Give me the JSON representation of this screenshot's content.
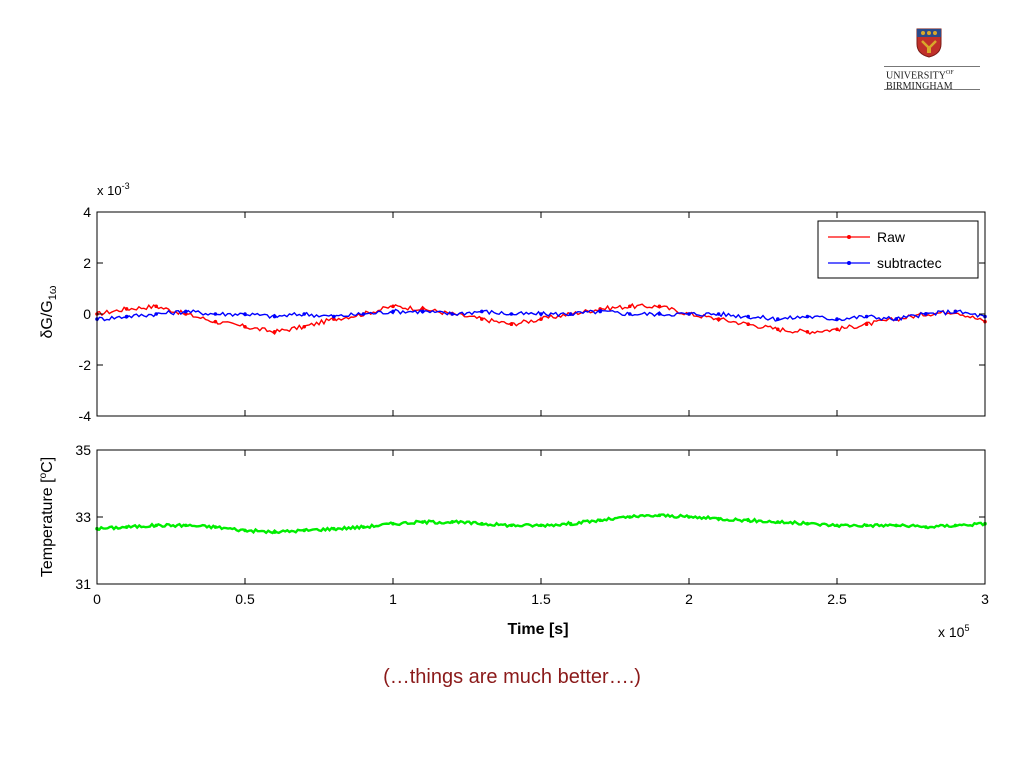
{
  "logo": {
    "line1": "UNIVERSITY",
    "line1_suffix": "OF",
    "line2": "BIRMINGHAM",
    "colors": {
      "red": "#c0302a",
      "gold": "#d9a82a",
      "blue": "#2a4a8a"
    }
  },
  "caption": "(…things are much better….)",
  "colors": {
    "raw": "#ff0000",
    "subtracted": "#0000ff",
    "temperature": "#00ee00",
    "caption": "#8b1a1a"
  },
  "chart_data": [
    {
      "type": "line",
      "ylabel": "δG/G",
      "ylabel_sub": "1ω",
      "y_multiplier": "x 10",
      "y_multiplier_exp": "-3",
      "ylim": [
        -4,
        4
      ],
      "xlim": [
        0,
        300000
      ],
      "yticks": [
        -4,
        -2,
        0,
        2,
        4
      ],
      "legend_position": "top-right",
      "series": [
        {
          "name": "Raw",
          "x": [
            0,
            10000,
            20000,
            30000,
            40000,
            50000,
            60000,
            70000,
            80000,
            90000,
            100000,
            110000,
            120000,
            130000,
            140000,
            150000,
            160000,
            170000,
            180000,
            190000,
            200000,
            210000,
            220000,
            230000,
            240000,
            250000,
            260000,
            270000,
            280000,
            290000,
            300000
          ],
          "values": [
            0.0,
            0.2,
            0.3,
            0.0,
            -0.3,
            -0.5,
            -0.7,
            -0.5,
            -0.2,
            0.0,
            0.3,
            0.2,
            0.0,
            -0.2,
            -0.4,
            -0.2,
            0.0,
            0.2,
            0.3,
            0.3,
            0.0,
            -0.2,
            -0.4,
            -0.6,
            -0.7,
            -0.6,
            -0.4,
            -0.2,
            0.0,
            0.1,
            -0.3
          ]
        },
        {
          "name": "subtractec",
          "x": [
            0,
            10000,
            20000,
            30000,
            40000,
            50000,
            60000,
            70000,
            80000,
            90000,
            100000,
            110000,
            120000,
            130000,
            140000,
            150000,
            160000,
            170000,
            180000,
            190000,
            200000,
            210000,
            220000,
            230000,
            240000,
            250000,
            260000,
            270000,
            280000,
            290000,
            300000
          ],
          "values": [
            -0.2,
            -0.1,
            0.0,
            0.1,
            0.0,
            0.0,
            -0.1,
            0.0,
            -0.1,
            0.0,
            0.1,
            0.1,
            0.0,
            0.1,
            0.0,
            0.0,
            0.0,
            0.1,
            0.0,
            0.0,
            0.0,
            0.0,
            -0.1,
            -0.2,
            -0.1,
            -0.2,
            -0.1,
            -0.2,
            0.0,
            0.1,
            -0.1
          ]
        }
      ]
    },
    {
      "type": "line",
      "ylabel": "Temperature [",
      "ylabel_sup": "o",
      "ylabel_tail": "C]",
      "xlabel": "Time [s]",
      "x_multiplier": "x 10",
      "x_multiplier_exp": "5",
      "ylim": [
        31,
        35
      ],
      "xlim": [
        0,
        300000
      ],
      "yticks": [
        31,
        33,
        35
      ],
      "xticks": [
        0,
        50000,
        100000,
        150000,
        200000,
        250000,
        300000
      ],
      "xtick_labels": [
        "0",
        "0.5",
        "1",
        "1.5",
        "2",
        "2.5",
        "3"
      ],
      "series": [
        {
          "name": "",
          "x": [
            0,
            10000,
            20000,
            30000,
            40000,
            50000,
            60000,
            70000,
            80000,
            90000,
            100000,
            110000,
            120000,
            130000,
            140000,
            150000,
            160000,
            170000,
            180000,
            190000,
            200000,
            210000,
            220000,
            230000,
            240000,
            250000,
            260000,
            270000,
            280000,
            290000,
            300000
          ],
          "values": [
            32.65,
            32.7,
            32.75,
            32.75,
            32.7,
            32.6,
            32.55,
            32.6,
            32.65,
            32.7,
            32.8,
            32.85,
            32.85,
            32.8,
            32.75,
            32.75,
            32.8,
            32.9,
            33.0,
            33.05,
            33.0,
            32.95,
            32.9,
            32.85,
            32.8,
            32.75,
            32.75,
            32.75,
            32.7,
            32.75,
            32.8
          ]
        }
      ]
    }
  ]
}
